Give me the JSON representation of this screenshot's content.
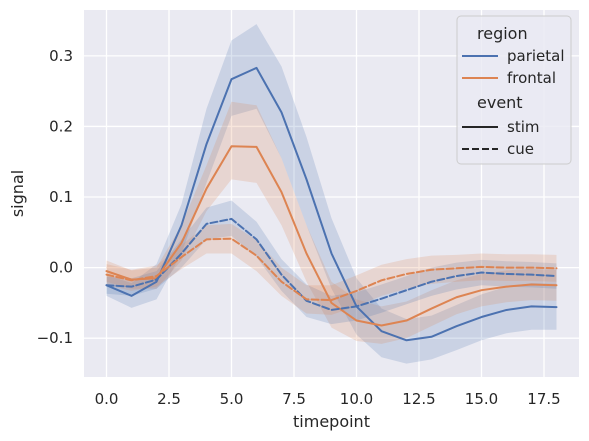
{
  "chart_data": {
    "type": "line",
    "xlabel": "timepoint",
    "ylabel": "signal",
    "xlim": [
      -0.9,
      18.9
    ],
    "ylim": [
      -0.155,
      0.365
    ],
    "xticks": [
      0.0,
      2.5,
      5.0,
      7.5,
      10.0,
      12.5,
      15.0,
      17.5
    ],
    "xtick_labels": [
      "0.0",
      "2.5",
      "5.0",
      "7.5",
      "10.0",
      "12.5",
      "15.0",
      "17.5"
    ],
    "yticks": [
      -0.1,
      0.0,
      0.1,
      0.2,
      0.3
    ],
    "ytick_labels": [
      "−0.1",
      "0.0",
      "0.1",
      "0.2",
      "0.3"
    ],
    "grid": true,
    "background": "#eaeaf2",
    "legend": {
      "placement": "top-right",
      "hue_title": "region",
      "style_title": "event",
      "hue_entries": [
        {
          "label": "parietal",
          "color": "#4c72b0"
        },
        {
          "label": "frontal",
          "color": "#dd8452"
        }
      ],
      "style_entries": [
        {
          "label": "stim",
          "dash": "solid"
        },
        {
          "label": "cue",
          "dash": "dashed"
        }
      ]
    },
    "x": [
      0,
      1,
      2,
      3,
      4,
      5,
      6,
      7,
      8,
      9,
      10,
      11,
      12,
      13,
      14,
      15,
      16,
      17,
      18
    ],
    "series": [
      {
        "region": "parietal",
        "event": "stim",
        "color": "#4c72b0",
        "dash": "solid",
        "values": [
          -0.025,
          -0.04,
          -0.02,
          0.06,
          0.175,
          0.267,
          0.283,
          0.22,
          0.125,
          0.02,
          -0.055,
          -0.09,
          -0.103,
          -0.098,
          -0.083,
          -0.07,
          -0.06,
          -0.055,
          -0.056
        ],
        "ci_low": [
          -0.04,
          -0.057,
          -0.045,
          0.02,
          0.12,
          0.215,
          0.225,
          0.155,
          0.06,
          -0.03,
          -0.095,
          -0.127,
          -0.136,
          -0.13,
          -0.117,
          -0.103,
          -0.093,
          -0.088,
          -0.088
        ],
        "ci_high": [
          -0.01,
          -0.022,
          0.005,
          0.09,
          0.225,
          0.322,
          0.345,
          0.285,
          0.185,
          0.07,
          -0.015,
          -0.058,
          -0.073,
          -0.068,
          -0.053,
          -0.038,
          -0.027,
          -0.022,
          -0.023
        ]
      },
      {
        "region": "frontal",
        "event": "stim",
        "color": "#dd8452",
        "dash": "solid",
        "values": [
          -0.005,
          -0.017,
          -0.015,
          0.035,
          0.112,
          0.172,
          0.171,
          0.107,
          0.02,
          -0.05,
          -0.075,
          -0.082,
          -0.075,
          -0.058,
          -0.042,
          -0.032,
          -0.027,
          -0.024,
          -0.025
        ],
        "ci_low": [
          -0.02,
          -0.03,
          -0.03,
          0.01,
          0.08,
          0.125,
          0.12,
          0.06,
          -0.02,
          -0.085,
          -0.104,
          -0.108,
          -0.1,
          -0.083,
          -0.066,
          -0.055,
          -0.049,
          -0.046,
          -0.047
        ],
        "ci_high": [
          0.01,
          -0.004,
          0.0,
          0.06,
          0.145,
          0.235,
          0.23,
          0.155,
          0.06,
          -0.02,
          -0.045,
          -0.055,
          -0.048,
          -0.032,
          -0.018,
          -0.009,
          -0.004,
          -0.002,
          -0.003
        ]
      },
      {
        "region": "parietal",
        "event": "cue",
        "color": "#4c72b0",
        "dash": "dashed",
        "values": [
          -0.025,
          -0.027,
          -0.017,
          0.02,
          0.062,
          0.069,
          0.04,
          -0.01,
          -0.047,
          -0.06,
          -0.055,
          -0.044,
          -0.032,
          -0.02,
          -0.012,
          -0.007,
          -0.009,
          -0.01,
          -0.012
        ],
        "ci_low": [
          -0.037,
          -0.04,
          -0.03,
          0.0,
          0.04,
          0.045,
          0.015,
          -0.033,
          -0.07,
          -0.08,
          -0.075,
          -0.064,
          -0.052,
          -0.04,
          -0.031,
          -0.025,
          -0.027,
          -0.028,
          -0.03
        ],
        "ci_high": [
          -0.013,
          -0.015,
          -0.005,
          0.04,
          0.085,
          0.095,
          0.065,
          0.012,
          -0.024,
          -0.04,
          -0.035,
          -0.024,
          -0.012,
          0.0,
          0.007,
          0.011,
          0.009,
          0.008,
          0.006
        ]
      },
      {
        "region": "frontal",
        "event": "cue",
        "color": "#dd8452",
        "dash": "dashed",
        "values": [
          -0.01,
          -0.018,
          -0.012,
          0.015,
          0.04,
          0.041,
          0.017,
          -0.02,
          -0.045,
          -0.046,
          -0.033,
          -0.018,
          -0.009,
          -0.003,
          -0.001,
          0.001,
          0.0,
          0.0,
          -0.001
        ],
        "ci_low": [
          -0.025,
          -0.033,
          -0.027,
          -0.002,
          0.02,
          0.02,
          -0.005,
          -0.04,
          -0.065,
          -0.067,
          -0.055,
          -0.04,
          -0.03,
          -0.023,
          -0.02,
          -0.018,
          -0.019,
          -0.019,
          -0.02
        ],
        "ci_high": [
          0.005,
          -0.003,
          0.003,
          0.032,
          0.06,
          0.062,
          0.039,
          0.0,
          -0.025,
          -0.025,
          -0.011,
          0.004,
          0.012,
          0.017,
          0.018,
          0.02,
          0.019,
          0.019,
          0.018
        ]
      }
    ]
  }
}
